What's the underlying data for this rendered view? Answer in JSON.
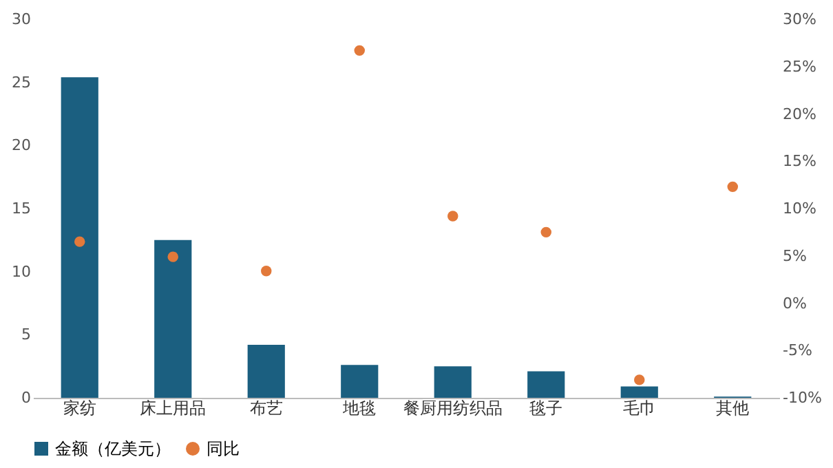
{
  "chart_data": {
    "type": "bar",
    "categories": [
      "家纺",
      "床上用品",
      "布艺",
      "地毯",
      "餐厨用纺织品",
      "毯子",
      "毛巾",
      "其他"
    ],
    "series": [
      {
        "name": "金额（亿美元）",
        "color": "#1b5f80",
        "values": [
          25.4,
          12.5,
          4.2,
          2.6,
          2.5,
          2.1,
          0.9,
          0.1
        ]
      },
      {
        "name": "同比",
        "type": "scatter",
        "axis": "y2",
        "color": "#e2793a",
        "values": [
          6.5,
          4.9,
          3.4,
          26.7,
          9.2,
          7.5,
          -8.1,
          12.3
        ]
      }
    ],
    "ylim": [
      0,
      30
    ],
    "yticks": [
      0,
      5,
      10,
      15,
      20,
      25,
      30
    ],
    "y2lim": [
      -10,
      30
    ],
    "y2ticks": [
      {
        "value": -10,
        "label": "-10%"
      },
      {
        "value": -5,
        "label": "-5%"
      },
      {
        "value": 0,
        "label": "0%"
      },
      {
        "value": 5,
        "label": "5%"
      },
      {
        "value": 10,
        "label": "10%"
      },
      {
        "value": 15,
        "label": "15%"
      },
      {
        "value": 20,
        "label": "20%"
      },
      {
        "value": 25,
        "label": "25%"
      },
      {
        "value": 30,
        "label": "30%"
      }
    ],
    "grid": false,
    "legend": "bottom",
    "marker": "circle"
  }
}
